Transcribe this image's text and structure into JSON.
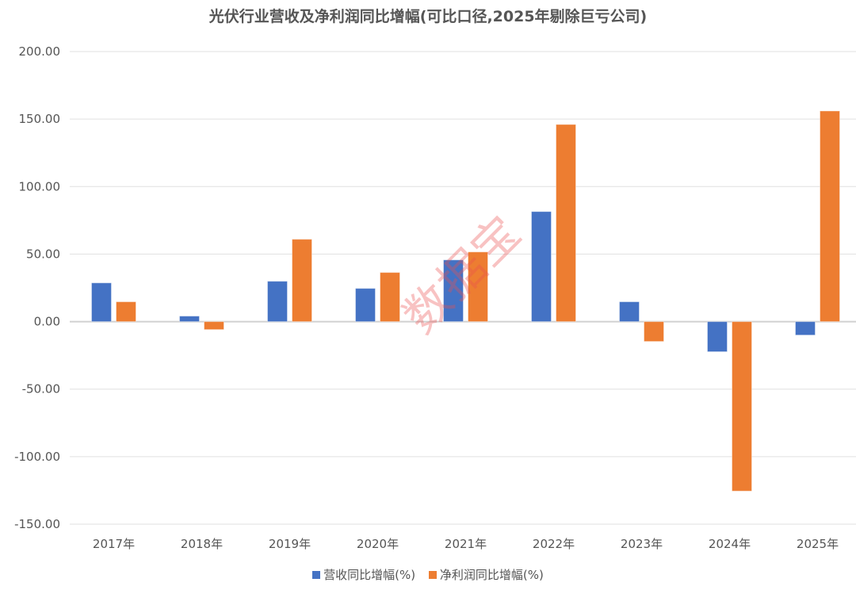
{
  "chart_data": {
    "type": "bar",
    "title": "光伏行业营收及净利润同比增幅(可比口径,2025年剔除巨亏公司)",
    "categories": [
      "2017年",
      "2018年",
      "2019年",
      "2020年",
      "2021年",
      "2022年",
      "2023年",
      "2024年",
      "2025年"
    ],
    "series": [
      {
        "name": "营收同比增幅(%)",
        "color": "#4472C4",
        "values": [
          28.7,
          4.1,
          29.9,
          24.6,
          45.7,
          81.5,
          14.7,
          -22.3,
          -10.0
        ]
      },
      {
        "name": "净利润同比增幅(%)",
        "color": "#ED7D31",
        "values": [
          14.7,
          -5.9,
          61.0,
          36.4,
          51.6,
          146.0,
          -14.7,
          -125.5,
          156.0
        ]
      }
    ],
    "ylim": [
      -150,
      200
    ],
    "yticks": [
      "200.00",
      "150.00",
      "100.00",
      "50.00",
      "0.00",
      "-50.00",
      "-100.00",
      "-150.00"
    ],
    "ytick_values": [
      200,
      150,
      100,
      50,
      0,
      -50,
      -100,
      -150
    ],
    "grid": true,
    "legend": "bottom",
    "xlabel": "",
    "ylabel": ""
  },
  "watermark": "数据宝"
}
